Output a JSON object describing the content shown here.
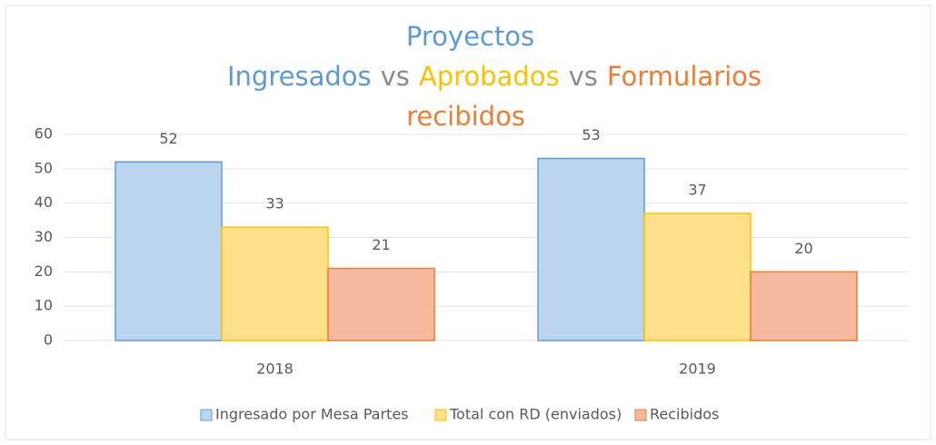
{
  "chart_data": {
    "type": "bar",
    "title_parts": [
      {
        "text": "Proyectos Ingresados",
        "color": "#5b9bd5"
      },
      {
        "text": "vs",
        "color": "#8c8c8c"
      },
      {
        "text": "Aprobados",
        "color": "#ffc000"
      },
      {
        "text": "vs",
        "color": "#8c8c8c"
      },
      {
        "text": "Formularios recibidos",
        "color": "#ed7d31"
      }
    ],
    "categories": [
      "2018",
      "2019"
    ],
    "series": [
      {
        "name": "Ingresado por Mesa Partes",
        "color": "#5b9bd5",
        "fill": "#bcd5ee",
        "values": [
          52,
          53
        ]
      },
      {
        "name": "Total con RD (enviados)",
        "color": "#ffc000",
        "fill": "#ffe08a",
        "values": [
          33,
          37
        ]
      },
      {
        "name": "Recibidos",
        "color": "#ed7d31",
        "fill": "#f5b9a0",
        "values": [
          21,
          20
        ]
      }
    ],
    "ylim": [
      0,
      60
    ],
    "yticks": [
      0,
      10,
      20,
      30,
      40,
      50,
      60
    ],
    "grid": true,
    "legend": "bottom"
  }
}
